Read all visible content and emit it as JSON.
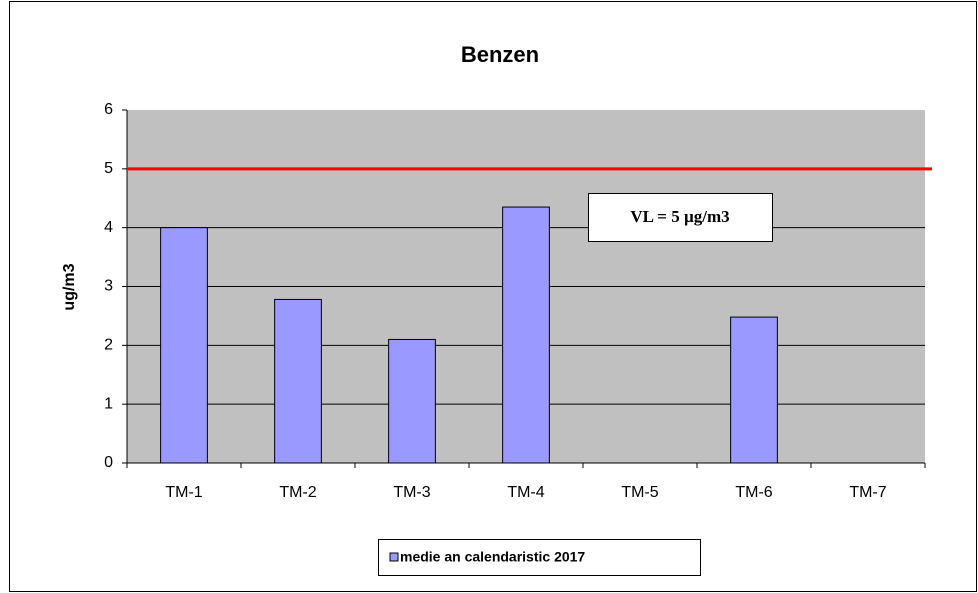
{
  "chart_data": {
    "type": "bar",
    "title": "Benzen",
    "y_label": "ug/m3",
    "categories": [
      "TM-1",
      "TM-2",
      "TM-3",
      "TM-4",
      "TM-5",
      "TM-6",
      "TM-7"
    ],
    "series": [
      {
        "name": "medie an calendaristic 2017",
        "color": "#9999ff",
        "values": [
          4.0,
          2.78,
          2.1,
          4.35,
          null,
          2.48,
          null
        ]
      }
    ],
    "ylim": [
      0,
      6
    ],
    "yticks": [
      0,
      1,
      2,
      3,
      4,
      5,
      6
    ],
    "grid": true,
    "legend": "bottom",
    "threshold": 5,
    "threshold_color": "#ff0000",
    "annotation": "VL = 5 µg/m3"
  }
}
